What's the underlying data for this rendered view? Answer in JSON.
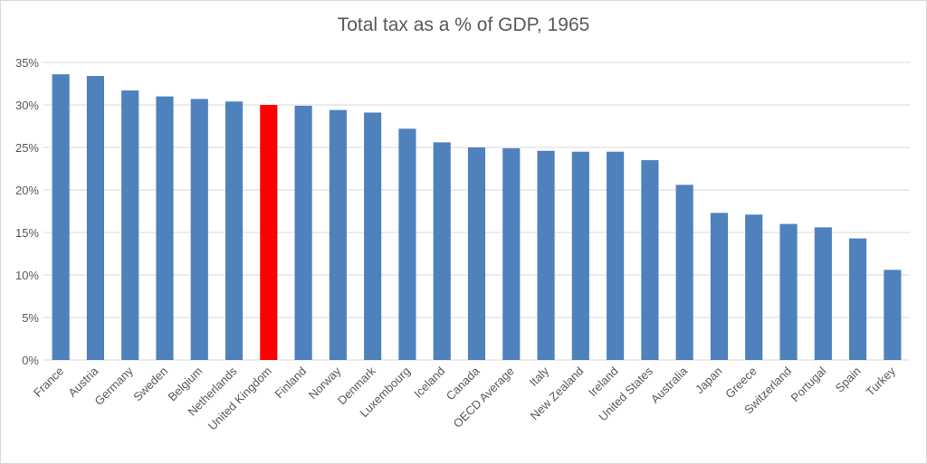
{
  "chart_data": {
    "type": "bar",
    "title": "Total tax as a % of GDP, 1965",
    "xlabel": "",
    "ylabel": "",
    "ylim": [
      0,
      35
    ],
    "yticks": [
      "0%",
      "5%",
      "10%",
      "15%",
      "20%",
      "25%",
      "30%",
      "35%"
    ],
    "grid": true,
    "categories": [
      "France",
      "Austria",
      "Germany",
      "Sweden",
      "Belgium",
      "Netherlands",
      "United Kingdom",
      "Finland",
      "Norway",
      "Denmark",
      "Luxembourg",
      "Iceland",
      "Canada",
      "OECD Average",
      "Italy",
      "New Zealand",
      "Ireland",
      "United States",
      "Australia",
      "Japan",
      "Greece",
      "Switzerland",
      "Portugal",
      "Spain",
      "Turkey"
    ],
    "values": [
      33.6,
      33.4,
      31.7,
      31.0,
      30.7,
      30.4,
      30.0,
      29.9,
      29.4,
      29.1,
      27.2,
      25.6,
      25.0,
      24.9,
      24.6,
      24.5,
      24.5,
      23.5,
      20.6,
      17.3,
      17.1,
      16.0,
      15.6,
      14.3,
      10.6
    ],
    "colors": {
      "default": "#4F81BD",
      "highlight": "#FF0000",
      "grid": "#d9d9d9",
      "text": "#595959"
    },
    "highlight_category": "United Kingdom"
  }
}
